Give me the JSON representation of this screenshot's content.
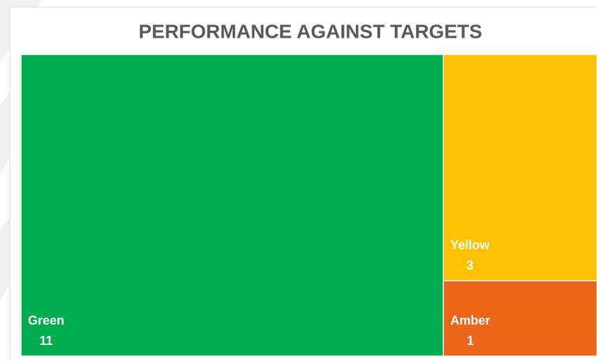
{
  "chart_data": {
    "type": "treemap",
    "title": "PERFORMANCE AGAINST TARGETS",
    "categories": [
      "Green",
      "Yellow",
      "Amber"
    ],
    "values": [
      11,
      3,
      1
    ],
    "colors": [
      "#00ac4f",
      "#ffc000",
      "#ec6519"
    ]
  }
}
